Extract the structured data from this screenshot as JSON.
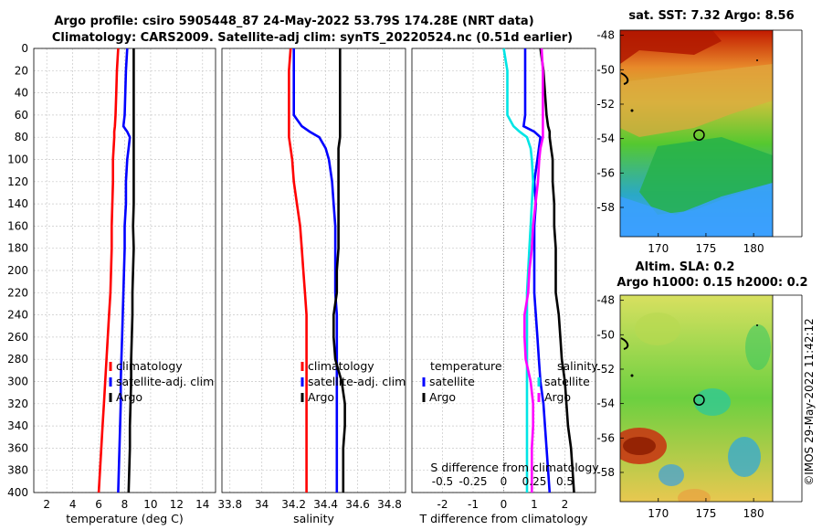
{
  "title_line1": "Argo profile: csiro 5905448_87 24-May-2022 53.79S 174.28E (NRT data)",
  "title_line2": "Climatology: CARS2009. Satellite-adj clim: synTS_20220524.nc (0.51d earlier)",
  "colors": {
    "climatology": "#ff0000",
    "satellite": "#0000ff",
    "argo": "#000000",
    "cyan": "#00e5e5",
    "magenta": "#ff00ff"
  },
  "chart_data": [
    {
      "type": "line",
      "id": "temperature",
      "xlabel": "temperature (deg C)",
      "ylabel": "",
      "xlim": [
        1,
        15
      ],
      "ylim": [
        0,
        400
      ],
      "xticks": [
        "2",
        "4",
        "6",
        "8",
        "10",
        "12",
        "14"
      ],
      "xtick_values": [
        2,
        4,
        6,
        8,
        10,
        12,
        14
      ],
      "yticks": [
        "0",
        "20",
        "40",
        "60",
        "80",
        "100",
        "120",
        "140",
        "160",
        "180",
        "200",
        "220",
        "240",
        "260",
        "280",
        "300",
        "320",
        "340",
        "360",
        "380",
        "400"
      ],
      "legend": [
        "climatology",
        "satellite-adj. clim",
        "Argo"
      ],
      "depth": [
        0,
        20,
        40,
        60,
        70,
        75,
        80,
        90,
        100,
        120,
        140,
        160,
        180,
        200,
        220,
        240,
        260,
        280,
        300,
        320,
        340,
        360,
        380,
        400
      ],
      "series": [
        {
          "name": "climatology",
          "values": [
            7.5,
            7.4,
            7.35,
            7.3,
            7.25,
            7.2,
            7.2,
            7.15,
            7.1,
            7.1,
            7.05,
            7.0,
            7.0,
            6.95,
            6.9,
            6.8,
            6.7,
            6.6,
            6.5,
            6.4,
            6.3,
            6.2,
            6.1,
            6.0
          ]
        },
        {
          "name": "satellite-adj. clim",
          "values": [
            8.2,
            8.1,
            8.05,
            8.0,
            7.9,
            8.2,
            8.4,
            8.3,
            8.2,
            8.1,
            8.1,
            8.0,
            8.0,
            7.95,
            7.9,
            7.85,
            7.8,
            7.75,
            7.7,
            7.7,
            7.65,
            7.6,
            7.55,
            7.5
          ]
        },
        {
          "name": "Argo",
          "values": [
            8.7,
            8.7,
            8.7,
            8.7,
            8.7,
            8.7,
            8.7,
            8.7,
            8.7,
            8.7,
            8.7,
            8.65,
            8.7,
            8.65,
            8.6,
            8.6,
            8.55,
            8.5,
            8.5,
            8.45,
            8.4,
            8.4,
            8.35,
            8.3
          ]
        }
      ]
    },
    {
      "type": "line",
      "id": "salinity",
      "xlabel": "salinity",
      "xlim": [
        33.75,
        34.9
      ],
      "ylim": [
        0,
        400
      ],
      "xticks": [
        "33.8",
        "34",
        "34.2",
        "34.4",
        "34.6",
        "34.8"
      ],
      "xtick_values": [
        33.8,
        34.0,
        34.2,
        34.4,
        34.6,
        34.8
      ],
      "legend": [
        "climatology",
        "satellite-adj. clim",
        "Argo"
      ],
      "depth": [
        0,
        20,
        40,
        60,
        70,
        75,
        80,
        90,
        100,
        120,
        140,
        160,
        180,
        200,
        220,
        240,
        260,
        280,
        300,
        320,
        340,
        360,
        380,
        400
      ],
      "series": [
        {
          "name": "climatology",
          "values": [
            34.18,
            34.17,
            34.17,
            34.17,
            34.17,
            34.17,
            34.17,
            34.18,
            34.19,
            34.2,
            34.22,
            34.24,
            34.25,
            34.26,
            34.27,
            34.28,
            34.28,
            34.28,
            34.28,
            34.28,
            34.28,
            34.28,
            34.28,
            34.28
          ]
        },
        {
          "name": "satellite-adj. clim",
          "values": [
            34.2,
            34.2,
            34.2,
            34.2,
            34.25,
            34.3,
            34.36,
            34.4,
            34.42,
            34.44,
            34.45,
            34.46,
            34.46,
            34.46,
            34.46,
            34.47,
            34.47,
            34.47,
            34.47,
            34.47,
            34.47,
            34.47,
            34.47,
            34.47
          ]
        },
        {
          "name": "Argo",
          "values": [
            34.49,
            34.49,
            34.49,
            34.49,
            34.49,
            34.49,
            34.49,
            34.48,
            34.48,
            34.48,
            34.48,
            34.48,
            34.48,
            34.47,
            34.47,
            34.45,
            34.45,
            34.46,
            34.5,
            34.52,
            34.52,
            34.51,
            34.51,
            34.51
          ]
        }
      ]
    },
    {
      "type": "line",
      "id": "difference",
      "xlabel": "T difference from climatology",
      "x2label": "S difference from climatology",
      "xlim": [
        -3,
        3
      ],
      "ylim": [
        0,
        400
      ],
      "xticks": [
        "-2",
        "-1",
        "0",
        "1",
        "2"
      ],
      "xtick_values": [
        -2,
        -1,
        0,
        1,
        2
      ],
      "x2ticks": [
        "-0.5",
        "-0.25",
        "0",
        "0.25",
        "0.5"
      ],
      "legend_temperature_title": "temperature",
      "legend_salinity_title": "salinity",
      "legend_temperature": [
        "satellite",
        "Argo"
      ],
      "legend_salinity": [
        "satellite",
        "Argo"
      ],
      "depth": [
        0,
        20,
        40,
        60,
        70,
        75,
        80,
        90,
        100,
        120,
        140,
        160,
        180,
        200,
        220,
        240,
        260,
        280,
        300,
        320,
        340,
        360,
        380,
        400
      ],
      "series": [
        {
          "name": "T satellite",
          "values": [
            0.7,
            0.7,
            0.7,
            0.7,
            0.65,
            1.0,
            1.2,
            1.15,
            1.1,
            1.0,
            1.05,
            1.0,
            1.0,
            1.0,
            1.0,
            1.05,
            1.1,
            1.15,
            1.2,
            1.3,
            1.35,
            1.4,
            1.45,
            1.5
          ]
        },
        {
          "name": "T Argo",
          "values": [
            1.2,
            1.3,
            1.35,
            1.4,
            1.45,
            1.5,
            1.5,
            1.55,
            1.6,
            1.6,
            1.65,
            1.65,
            1.7,
            1.7,
            1.7,
            1.8,
            1.85,
            1.9,
            2.0,
            2.05,
            2.1,
            2.2,
            2.25,
            2.3
          ]
        },
        {
          "name": "S satellite",
          "values": [
            0.0,
            0.03,
            0.03,
            0.03,
            0.08,
            0.13,
            0.19,
            0.22,
            0.23,
            0.24,
            0.23,
            0.22,
            0.21,
            0.2,
            0.19,
            0.19,
            0.19,
            0.19,
            0.19,
            0.19,
            0.19,
            0.19,
            0.19,
            0.19
          ]
        },
        {
          "name": "S Argo",
          "values": [
            0.31,
            0.32,
            0.32,
            0.32,
            0.32,
            0.32,
            0.32,
            0.3,
            0.29,
            0.28,
            0.26,
            0.24,
            0.23,
            0.21,
            0.2,
            0.17,
            0.17,
            0.18,
            0.22,
            0.24,
            0.24,
            0.23,
            0.23,
            0.23
          ]
        }
      ]
    },
    {
      "type": "heatmap",
      "id": "sst_map",
      "title": "sat. SST: 7.32 Argo: 8.56",
      "xlim": [
        166,
        182
      ],
      "ylim": [
        -59.7,
        -47.7
      ],
      "xticks": [
        "170",
        "175",
        "180"
      ],
      "xtick_values": [
        170,
        175,
        180
      ],
      "yticks": [
        "-48",
        "-50",
        "-52",
        "-54",
        "-56",
        "-58"
      ],
      "ytick_values": [
        -48,
        -50,
        -52,
        -54,
        -56,
        -58
      ],
      "float_position": {
        "lon": 174.28,
        "lat": -53.79
      }
    },
    {
      "type": "heatmap",
      "id": "sla_map",
      "title_line1": "Altim. SLA: 0.2",
      "title_line2": "Argo h1000: 0.15 h2000: 0.2",
      "xlim": [
        166,
        182
      ],
      "ylim": [
        -59.7,
        -47.7
      ],
      "xticks": [
        "170",
        "175",
        "180"
      ],
      "xtick_values": [
        170,
        175,
        180
      ],
      "yticks": [
        "-48",
        "-50",
        "-52",
        "-54",
        "-56",
        "-58"
      ],
      "ytick_values": [
        -48,
        -50,
        -52,
        -54,
        -56,
        -58
      ],
      "float_position": {
        "lon": 174.28,
        "lat": -53.79
      }
    }
  ],
  "copyright": "©IMOS 29-May-2022 11:42:12"
}
